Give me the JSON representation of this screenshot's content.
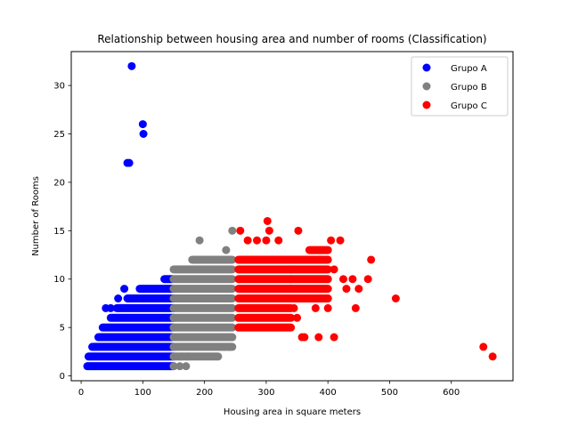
{
  "chart_data": {
    "type": "scatter",
    "title": "Relationship between housing area and number of rooms (Classification)",
    "xlabel": "Housing area in square meters",
    "ylabel": "Number of Rooms",
    "xlim": [
      -16,
      700
    ],
    "ylim": [
      -0.5,
      33.5
    ],
    "xticks": [
      0,
      100,
      200,
      300,
      400,
      500,
      600
    ],
    "yticks": [
      0,
      5,
      10,
      15,
      20,
      25,
      30
    ],
    "grid": false,
    "legend_position": "top-right",
    "series": [
      {
        "name": "Grupo A",
        "color": "#0000ff",
        "bands": [
          {
            "xmin": 10,
            "xmax": 150,
            "ymin": 1,
            "ymax": 1
          },
          {
            "xmin": 12,
            "xmax": 150,
            "ymin": 2,
            "ymax": 2
          },
          {
            "xmin": 18,
            "xmax": 150,
            "ymin": 3,
            "ymax": 3
          },
          {
            "xmin": 28,
            "xmax": 150,
            "ymin": 4,
            "ymax": 4
          },
          {
            "xmin": 35,
            "xmax": 150,
            "ymin": 5,
            "ymax": 5
          },
          {
            "xmin": 48,
            "xmax": 150,
            "ymin": 6,
            "ymax": 6
          },
          {
            "xmin": 58,
            "xmax": 150,
            "ymin": 7,
            "ymax": 7
          },
          {
            "xmin": 75,
            "xmax": 150,
            "ymin": 8,
            "ymax": 8
          },
          {
            "xmin": 95,
            "xmax": 148,
            "ymin": 9,
            "ymax": 9
          },
          {
            "xmin": 135,
            "xmax": 148,
            "ymin": 10,
            "ymax": 10
          }
        ],
        "points": [
          [
            40,
            7
          ],
          [
            48,
            7
          ],
          [
            70,
            9
          ],
          [
            80,
            8
          ],
          [
            60,
            8
          ],
          [
            82,
            32
          ],
          [
            100,
            26
          ],
          [
            101,
            25
          ],
          [
            75,
            22
          ],
          [
            78,
            22
          ]
        ]
      },
      {
        "name": "Grupo B",
        "color": "#808080",
        "bands": [
          {
            "xmin": 150,
            "xmax": 245,
            "ymin": 3,
            "ymax": 11
          },
          {
            "xmin": 150,
            "xmax": 220,
            "ymin": 2,
            "ymax": 2
          },
          {
            "xmin": 180,
            "xmax": 245,
            "ymin": 12,
            "ymax": 12
          }
        ],
        "points": [
          [
            150,
            1
          ],
          [
            160,
            1
          ],
          [
            170,
            1
          ],
          [
            162,
            2
          ],
          [
            172,
            2
          ],
          [
            222,
            2
          ],
          [
            232,
            3
          ],
          [
            240,
            3
          ],
          [
            235,
            13
          ],
          [
            245,
            15
          ],
          [
            192,
            14
          ]
        ]
      },
      {
        "name": "Grupo C",
        "color": "#ff0000",
        "bands": [
          {
            "xmin": 255,
            "xmax": 340,
            "ymin": 5,
            "ymax": 12
          },
          {
            "xmin": 340,
            "xmax": 400,
            "ymin": 8,
            "ymax": 12
          },
          {
            "xmin": 370,
            "xmax": 400,
            "ymin": 13,
            "ymax": 13
          }
        ],
        "points": [
          [
            258,
            15
          ],
          [
            270,
            14
          ],
          [
            285,
            14
          ],
          [
            300,
            14
          ],
          [
            302,
            16
          ],
          [
            305,
            15
          ],
          [
            320,
            14
          ],
          [
            352,
            15
          ],
          [
            405,
            14
          ],
          [
            420,
            14
          ],
          [
            410,
            11
          ],
          [
            425,
            10
          ],
          [
            440,
            10
          ],
          [
            450,
            9
          ],
          [
            430,
            9
          ],
          [
            465,
            10
          ],
          [
            470,
            12
          ],
          [
            445,
            7
          ],
          [
            380,
            7
          ],
          [
            400,
            7
          ],
          [
            510,
            8
          ],
          [
            358,
            4
          ],
          [
            362,
            4
          ],
          [
            385,
            4
          ],
          [
            410,
            4
          ],
          [
            652,
            3
          ],
          [
            667,
            2
          ],
          [
            400,
            8
          ],
          [
            345,
            7
          ],
          [
            350,
            6
          ]
        ]
      }
    ]
  }
}
